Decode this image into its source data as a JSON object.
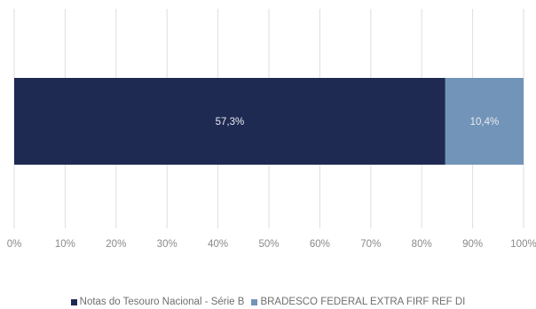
{
  "chart_data": {
    "type": "bar",
    "orientation": "horizontal",
    "stacked": true,
    "percent_scale": true,
    "categories": [
      ""
    ],
    "series": [
      {
        "name": "Notas do Tesouro Nacional - Série B",
        "values": [
          57.3
        ],
        "label": "57,3%",
        "color": "#1f2a52"
      },
      {
        "name": "BRADESCO FEDERAL EXTRA FIRF REF DI",
        "values": [
          10.4
        ],
        "label": "10,4%",
        "color": "#7294b8"
      }
    ],
    "xlim": [
      0,
      100
    ],
    "x_ticks": [
      "0%",
      "10%",
      "20%",
      "30%",
      "40%",
      "50%",
      "60%",
      "70%",
      "80%",
      "90%",
      "100%"
    ],
    "grid": true,
    "legend_position": "bottom"
  }
}
